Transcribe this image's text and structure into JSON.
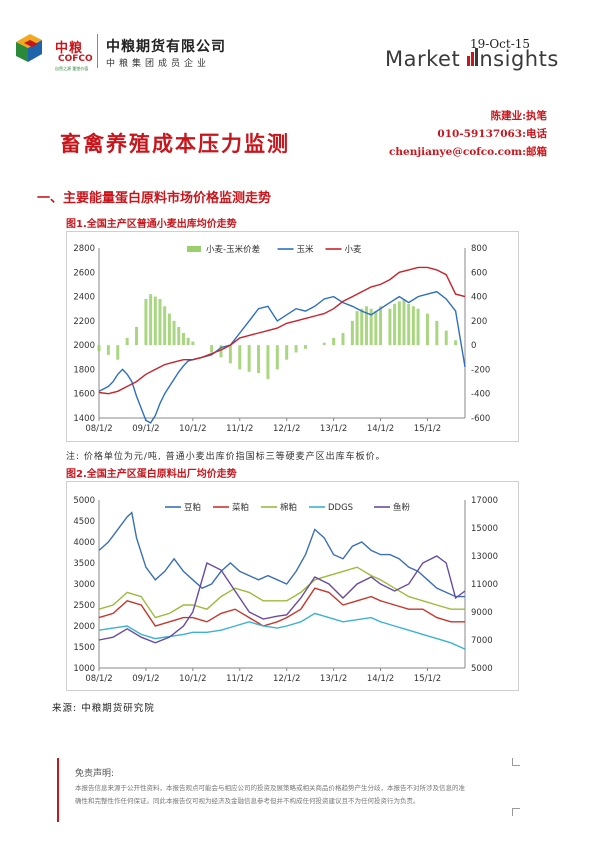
{
  "header": {
    "logo_cn": "中粮",
    "logo_en": "COFCO",
    "logo_tiny": "自然之源 重塑价值",
    "company": "中粮期货有限公司",
    "company_sub": "中粮集团成员企业",
    "date": "19-Oct-15",
    "brand_a": "Market ",
    "brand_b": "nsights"
  },
  "author": {
    "name": "陈建业:执笔",
    "phone": "010-59137063:电话",
    "email": "chenjianye@cofco.com:邮箱"
  },
  "title": "畜禽养殖成本压力监测",
  "section": "一、主要能量蛋白原料市场价格监测走势",
  "note": "注: 价格单位为元/吨, 普通小麦出库价指国标三等硬麦产区出库车板价。",
  "source": "来源: 中粮期货研究院",
  "disclaimer": {
    "title": "免责声明:",
    "line1": "本报告信息来源于公开性资料，本报告观点可能会与相应公司的投资及展策略或相关商品价格趋势产生分歧，本报告不对所涉及信息的准",
    "line2": "确性和完整性作任何保证。同此本报告仅可视为经济及金融信息参考但并不构成任何投资建议且不为任何投资行为负责。"
  },
  "colors": {
    "accent": "#c8161d",
    "corn": "#2e6fc0",
    "wheat": "#c8232b",
    "spread": "#9bcf6b",
    "soymeal": "#3b6fb6",
    "rapemeal": "#c8362c",
    "cottonmeal": "#9bbb3b",
    "ddgs": "#3bb3d0",
    "fishmeal": "#6a4aa0"
  },
  "chart_data": [
    {
      "type": "line",
      "title": "图1.全国主产区普通小麦出库均价走势",
      "x_ticks": [
        "08/1/2",
        "09/1/2",
        "10/1/2",
        "11/1/2",
        "12/1/2",
        "13/1/2",
        "14/1/2",
        "15/1/2"
      ],
      "x_range": [
        2008.0,
        2015.8
      ],
      "y_left": {
        "min": 1400,
        "max": 2800,
        "ticks": [
          1400,
          1600,
          1800,
          2000,
          2200,
          2400,
          2600,
          2800
        ]
      },
      "y_right": {
        "min": -600,
        "max": 800,
        "ticks": [
          -600,
          -400,
          -200,
          0,
          200,
          400,
          600,
          800
        ]
      },
      "legend_placement": "top",
      "series": [
        {
          "name": "小麦-玉米价差",
          "kind": "bar",
          "axis": "right",
          "x": [
            2008.0,
            2008.2,
            2008.4,
            2008.6,
            2008.8,
            2009.0,
            2009.1,
            2009.2,
            2009.3,
            2009.4,
            2009.5,
            2009.6,
            2009.7,
            2009.8,
            2009.9,
            2010.0,
            2010.2,
            2010.4,
            2010.6,
            2010.8,
            2011.0,
            2011.2,
            2011.4,
            2011.6,
            2011.8,
            2012.0,
            2012.2,
            2012.4,
            2012.6,
            2012.8,
            2013.0,
            2013.2,
            2013.4,
            2013.5,
            2013.6,
            2013.7,
            2013.8,
            2013.9,
            2014.0,
            2014.2,
            2014.3,
            2014.4,
            2014.5,
            2014.6,
            2014.7,
            2014.8,
            2015.0,
            2015.2,
            2015.4,
            2015.6
          ],
          "values": [
            -50,
            -80,
            -120,
            60,
            150,
            380,
            420,
            400,
            380,
            320,
            260,
            200,
            150,
            100,
            60,
            30,
            0,
            -60,
            -100,
            -150,
            -200,
            -220,
            -230,
            -280,
            -200,
            -120,
            -60,
            -30,
            0,
            20,
            60,
            100,
            200,
            280,
            300,
            320,
            300,
            280,
            320,
            300,
            340,
            360,
            380,
            340,
            320,
            300,
            260,
            200,
            120,
            40
          ]
        },
        {
          "name": "玉米",
          "kind": "line",
          "axis": "left",
          "x": [
            2008.0,
            2008.1,
            2008.2,
            2008.3,
            2008.4,
            2008.5,
            2008.6,
            2008.7,
            2008.8,
            2008.9,
            2009.0,
            2009.1,
            2009.2,
            2009.3,
            2009.4,
            2009.5,
            2009.6,
            2009.7,
            2009.8,
            2009.9,
            2010.0,
            2010.2,
            2010.4,
            2010.6,
            2010.8,
            2011.0,
            2011.2,
            2011.4,
            2011.6,
            2011.8,
            2012.0,
            2012.2,
            2012.4,
            2012.6,
            2012.8,
            2013.0,
            2013.2,
            2013.4,
            2013.6,
            2013.8,
            2014.0,
            2014.2,
            2014.4,
            2014.6,
            2014.8,
            2015.0,
            2015.2,
            2015.4,
            2015.6,
            2015.7,
            2015.8
          ],
          "values": [
            1620,
            1640,
            1660,
            1700,
            1760,
            1800,
            1760,
            1700,
            1580,
            1480,
            1380,
            1360,
            1420,
            1520,
            1600,
            1660,
            1720,
            1780,
            1830,
            1870,
            1880,
            1900,
            1920,
            1980,
            2000,
            2100,
            2200,
            2300,
            2320,
            2200,
            2250,
            2300,
            2280,
            2320,
            2380,
            2400,
            2350,
            2320,
            2280,
            2250,
            2300,
            2350,
            2400,
            2350,
            2400,
            2420,
            2440,
            2380,
            2280,
            2050,
            1820
          ]
        },
        {
          "name": "小麦",
          "kind": "line",
          "axis": "left",
          "x": [
            2008.0,
            2008.2,
            2008.4,
            2008.6,
            2008.8,
            2009.0,
            2009.2,
            2009.4,
            2009.6,
            2009.8,
            2010.0,
            2010.2,
            2010.4,
            2010.6,
            2010.8,
            2011.0,
            2011.2,
            2011.4,
            2011.6,
            2011.8,
            2012.0,
            2012.2,
            2012.4,
            2012.6,
            2012.8,
            2013.0,
            2013.2,
            2013.4,
            2013.6,
            2013.8,
            2014.0,
            2014.2,
            2014.4,
            2014.6,
            2014.8,
            2015.0,
            2015.2,
            2015.4,
            2015.6,
            2015.8
          ],
          "values": [
            1610,
            1600,
            1620,
            1660,
            1700,
            1760,
            1800,
            1840,
            1860,
            1880,
            1880,
            1900,
            1930,
            1960,
            2000,
            2060,
            2080,
            2100,
            2120,
            2140,
            2180,
            2200,
            2220,
            2240,
            2260,
            2300,
            2360,
            2400,
            2440,
            2480,
            2500,
            2540,
            2600,
            2620,
            2640,
            2640,
            2620,
            2580,
            2420,
            2400
          ]
        }
      ]
    },
    {
      "type": "line",
      "title": "图2.全国主产区蛋白原料出厂均价走势",
      "x_ticks": [
        "08/1/2",
        "09/1/2",
        "10/1/2",
        "11/1/2",
        "12/1/2",
        "13/1/2",
        "14/1/2",
        "15/1/2"
      ],
      "x_range": [
        2008.0,
        2015.8
      ],
      "y_left": {
        "min": 1000,
        "max": 5000,
        "ticks": [
          1000,
          1500,
          2000,
          2500,
          3000,
          3500,
          4000,
          4500,
          5000
        ]
      },
      "y_right": {
        "min": 5000,
        "max": 17000,
        "ticks": [
          5000,
          7000,
          9000,
          11000,
          13000,
          15000,
          17000
        ]
      },
      "legend_placement": "top",
      "series": [
        {
          "name": "豆粕",
          "axis": "left",
          "x": [
            2008.0,
            2008.2,
            2008.4,
            2008.6,
            2008.7,
            2008.8,
            2009.0,
            2009.2,
            2009.4,
            2009.6,
            2009.8,
            2010.0,
            2010.2,
            2010.4,
            2010.6,
            2010.8,
            2011.0,
            2011.2,
            2011.4,
            2011.6,
            2011.8,
            2012.0,
            2012.2,
            2012.4,
            2012.6,
            2012.8,
            2013.0,
            2013.2,
            2013.4,
            2013.6,
            2013.8,
            2014.0,
            2014.2,
            2014.4,
            2014.6,
            2014.8,
            2015.0,
            2015.2,
            2015.4,
            2015.6,
            2015.8
          ],
          "values": [
            3800,
            4000,
            4300,
            4600,
            4700,
            4100,
            3400,
            3100,
            3300,
            3600,
            3300,
            3100,
            2900,
            3000,
            3300,
            3500,
            3300,
            3200,
            3100,
            3200,
            3100,
            3000,
            3300,
            3700,
            4300,
            4100,
            3700,
            3600,
            3900,
            4000,
            3800,
            3700,
            3700,
            3600,
            3400,
            3300,
            3100,
            2900,
            2800,
            2700,
            2700
          ]
        },
        {
          "name": "菜粕",
          "axis": "left",
          "x": [
            2008.0,
            2008.3,
            2008.6,
            2008.9,
            2009.2,
            2009.5,
            2009.8,
            2010.0,
            2010.3,
            2010.6,
            2010.9,
            2011.2,
            2011.5,
            2011.8,
            2012.0,
            2012.3,
            2012.6,
            2012.9,
            2013.2,
            2013.5,
            2013.8,
            2014.0,
            2014.3,
            2014.6,
            2014.9,
            2015.2,
            2015.5,
            2015.8
          ],
          "values": [
            2200,
            2300,
            2600,
            2500,
            2000,
            2100,
            2200,
            2200,
            2100,
            2300,
            2400,
            2200,
            2000,
            2100,
            2200,
            2400,
            2900,
            2800,
            2500,
            2600,
            2700,
            2600,
            2500,
            2400,
            2400,
            2200,
            2100,
            2100
          ]
        },
        {
          "name": "棉粕",
          "axis": "left",
          "x": [
            2008.0,
            2008.3,
            2008.6,
            2008.9,
            2009.2,
            2009.5,
            2009.8,
            2010.0,
            2010.3,
            2010.6,
            2010.9,
            2011.2,
            2011.5,
            2011.8,
            2012.0,
            2012.3,
            2012.6,
            2012.9,
            2013.2,
            2013.5,
            2013.8,
            2014.0,
            2014.3,
            2014.6,
            2014.9,
            2015.2,
            2015.5,
            2015.8
          ],
          "values": [
            2400,
            2500,
            2800,
            2700,
            2200,
            2300,
            2500,
            2500,
            2400,
            2700,
            2900,
            2800,
            2600,
            2600,
            2600,
            2800,
            3100,
            3200,
            3300,
            3400,
            3200,
            3100,
            2900,
            2700,
            2600,
            2500,
            2400,
            2400
          ]
        },
        {
          "name": "DDGS",
          "axis": "left",
          "x": [
            2008.0,
            2008.3,
            2008.6,
            2008.9,
            2009.2,
            2009.5,
            2009.8,
            2010.0,
            2010.3,
            2010.6,
            2010.9,
            2011.2,
            2011.5,
            2011.8,
            2012.0,
            2012.3,
            2012.6,
            2012.9,
            2013.2,
            2013.5,
            2013.8,
            2014.0,
            2014.3,
            2014.6,
            2014.9,
            2015.2,
            2015.5,
            2015.8
          ],
          "values": [
            1900,
            1950,
            2000,
            1800,
            1700,
            1750,
            1800,
            1850,
            1850,
            1900,
            2000,
            2100,
            2000,
            1950,
            2000,
            2100,
            2300,
            2200,
            2100,
            2150,
            2200,
            2100,
            2000,
            1900,
            1800,
            1700,
            1600,
            1450
          ]
        },
        {
          "name": "鱼粉",
          "axis": "right",
          "x": [
            2008.0,
            2008.3,
            2008.6,
            2008.9,
            2009.2,
            2009.5,
            2009.8,
            2010.0,
            2010.3,
            2010.6,
            2010.9,
            2011.2,
            2011.5,
            2011.8,
            2012.0,
            2012.3,
            2012.6,
            2012.9,
            2013.2,
            2013.5,
            2013.8,
            2014.0,
            2014.3,
            2014.6,
            2014.9,
            2015.2,
            2015.4,
            2015.6,
            2015.8
          ],
          "values": [
            7000,
            7200,
            7800,
            7200,
            6800,
            7200,
            8000,
            9000,
            12500,
            12000,
            10500,
            9000,
            8500,
            8700,
            8800,
            10000,
            11500,
            11000,
            10000,
            11000,
            11500,
            11000,
            10500,
            11000,
            12500,
            13000,
            12500,
            10000,
            10500
          ]
        }
      ]
    }
  ]
}
